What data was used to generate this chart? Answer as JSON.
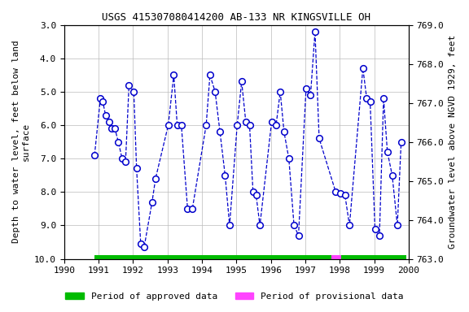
{
  "title": "USGS 415307080414200 AB-133 NR KINGSVILLE OH",
  "ylabel_left": "Depth to water level, feet below land\nsurface",
  "ylabel_right": "Groundwater level above NGVD 1929, feet",
  "ylim_left": [
    3.0,
    10.0
  ],
  "ylim_right": [
    769.0,
    763.0
  ],
  "xlim": [
    1990,
    2000
  ],
  "xticks": [
    1990,
    1991,
    1992,
    1993,
    1994,
    1995,
    1996,
    1997,
    1998,
    1999,
    2000
  ],
  "yticks_left": [
    3.0,
    4.0,
    5.0,
    6.0,
    7.0,
    8.0,
    9.0,
    10.0
  ],
  "yticks_right": [
    769.0,
    768.0,
    767.0,
    766.0,
    765.0,
    764.0,
    763.0
  ],
  "line_color": "#0000cc",
  "marker_color": "#0000cc",
  "marker_face": "white",
  "data_x": [
    1990.88,
    1991.05,
    1991.12,
    1991.2,
    1991.3,
    1991.38,
    1991.47,
    1991.57,
    1991.68,
    1991.78,
    1991.88,
    1992.02,
    1992.1,
    1992.22,
    1992.32,
    1992.55,
    1992.65,
    1993.02,
    1993.18,
    1993.28,
    1993.4,
    1993.58,
    1993.72,
    1994.12,
    1994.23,
    1994.38,
    1994.52,
    1994.67,
    1994.8,
    1995.02,
    1995.15,
    1995.27,
    1995.38,
    1995.48,
    1995.57,
    1995.68,
    1996.02,
    1996.15,
    1996.27,
    1996.38,
    1996.52,
    1996.67,
    1996.8,
    1997.02,
    1997.15,
    1997.28,
    1997.4,
    1997.88,
    1998.02,
    1998.15,
    1998.28,
    1998.67,
    1998.78,
    1998.88,
    1999.02,
    1999.15,
    1999.27,
    1999.38,
    1999.52,
    1999.67,
    1999.78
  ],
  "data_y": [
    6.9,
    5.2,
    5.3,
    5.7,
    5.9,
    6.1,
    6.1,
    6.5,
    7.0,
    7.1,
    4.8,
    5.0,
    7.3,
    9.55,
    9.65,
    8.3,
    7.6,
    6.0,
    4.5,
    6.0,
    6.0,
    8.5,
    8.5,
    6.0,
    4.5,
    5.0,
    6.2,
    7.5,
    9.0,
    6.0,
    4.7,
    5.9,
    6.0,
    8.0,
    8.1,
    9.0,
    5.9,
    6.0,
    5.0,
    6.2,
    7.0,
    9.0,
    9.3,
    4.9,
    5.1,
    3.2,
    6.4,
    8.0,
    8.05,
    8.1,
    9.0,
    4.3,
    5.2,
    5.3,
    9.1,
    9.3,
    5.2,
    6.8,
    7.5,
    9.0,
    6.5
  ],
  "approved_bar_segments": [
    {
      "xmin": 1990.88,
      "xmax": 1997.75,
      "color": "#00bb00"
    },
    {
      "xmin": 1998.05,
      "xmax": 1999.92,
      "color": "#00bb00"
    }
  ],
  "provisional_bar_segments": [
    {
      "xmin": 1997.75,
      "xmax": 1998.05,
      "color": "#ff44ff"
    }
  ],
  "background_color": "#ffffff",
  "grid_color": "#bbbbbb",
  "title_fontsize": 9,
  "axis_label_fontsize": 8,
  "tick_fontsize": 8,
  "legend_fontsize": 8
}
